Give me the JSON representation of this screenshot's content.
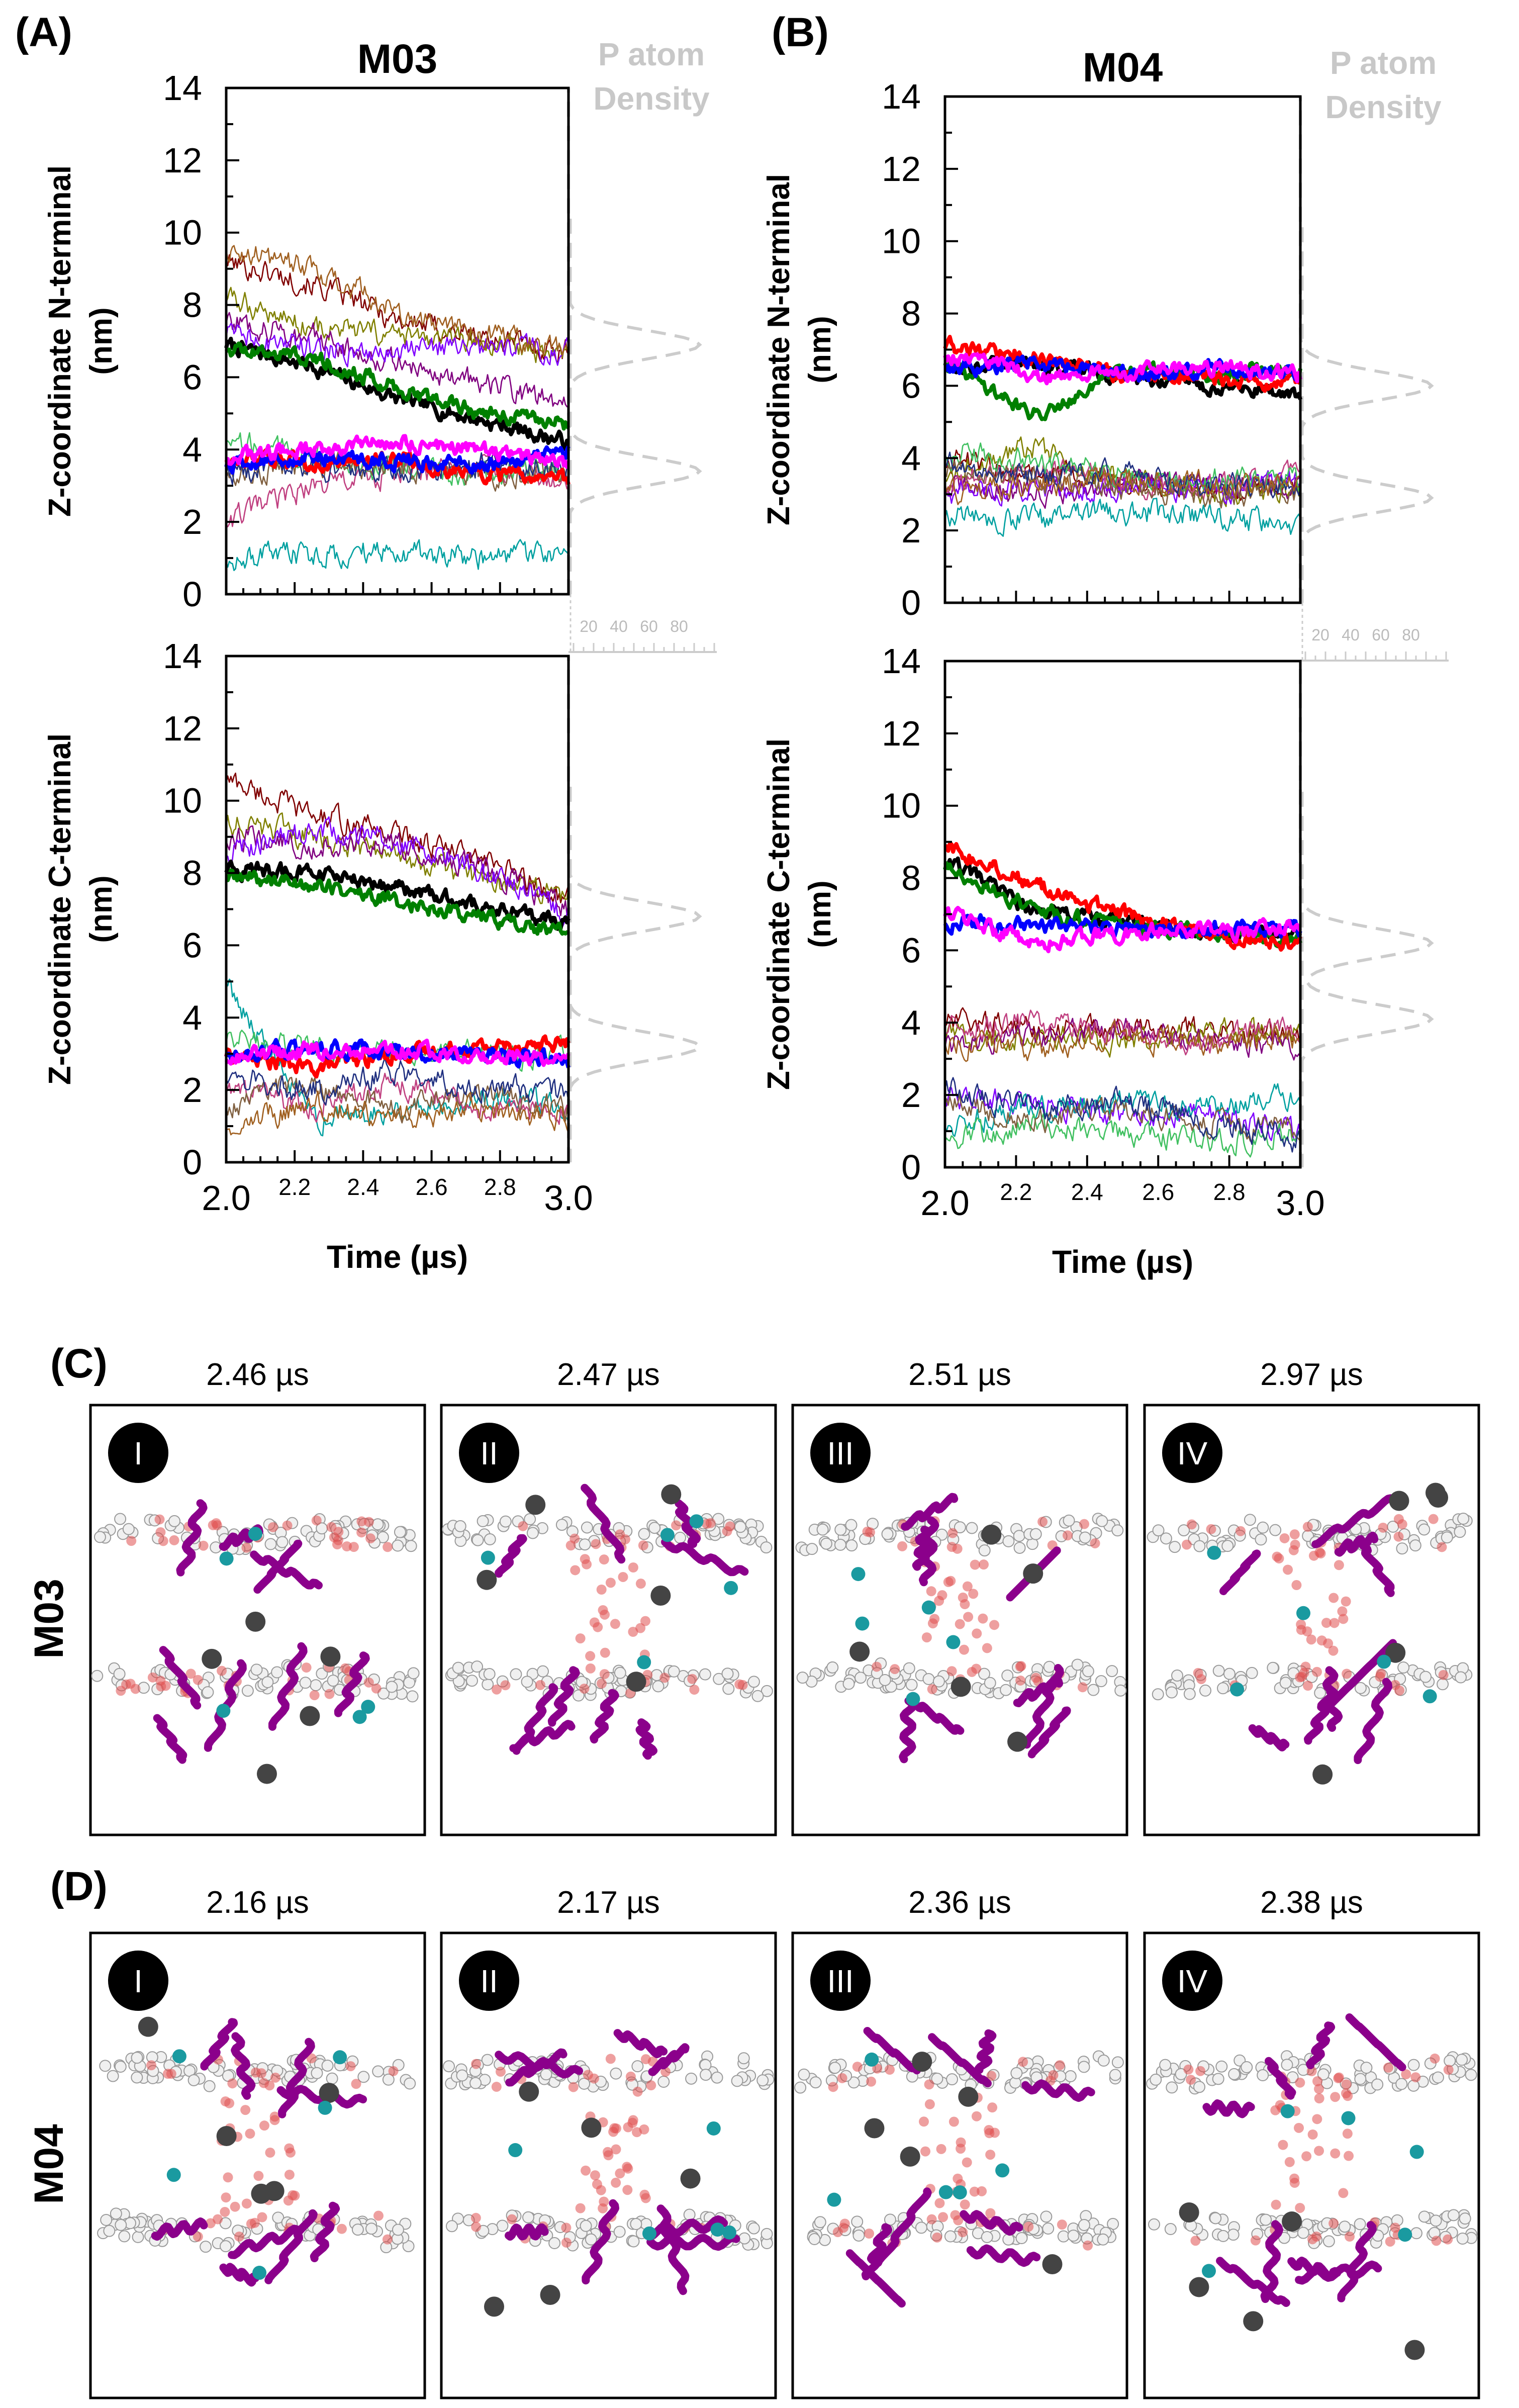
{
  "panel_labels": {
    "A": "(A)",
    "B": "(B)",
    "C": "(C)",
    "D": "(D)"
  },
  "colors": {
    "thick_lines": [
      "#000000",
      "#008000",
      "#ff0000",
      "#0000ff",
      "#ff00ff"
    ],
    "thin_lines": [
      "#800000",
      "#808000",
      "#800080",
      "#8000ff",
      "#00a0a0",
      "#c04080",
      "#40c060",
      "#806040",
      "#203080",
      "#a06020"
    ],
    "density": "#cccccc",
    "protein": "#8b008b",
    "lipid_head": "#f0f0f0",
    "water": "#e05050",
    "marker": "#1a9aa0",
    "dark_bead": "#444444"
  },
  "chart_data": [
    {
      "id": "A_top",
      "type": "line",
      "title": "M03",
      "xlabel": "",
      "ylabel": "Z-coordinate N-terminal (nm)",
      "ylim": [
        0,
        14
      ],
      "xlim": [
        2.0,
        3.0
      ],
      "yticks": [
        0,
        2,
        4,
        6,
        8,
        10,
        12,
        14
      ],
      "xticks": [],
      "density": {
        "label": "P atom Density",
        "xticks": [
          20,
          40,
          60,
          80
        ],
        "peaks_nm": [
          3.4,
          6.9
        ],
        "show_label": true,
        "show_axis": true
      },
      "thick": [
        [
          6.9,
          6.3,
          5.4,
          4.8,
          4.2
        ],
        [
          6.8,
          6.6,
          5.7,
          5.0,
          4.7
        ],
        [
          3.8,
          3.6,
          3.7,
          3.3,
          3.2
        ],
        [
          3.6,
          3.8,
          3.7,
          3.6,
          4.0
        ],
        [
          3.8,
          4.0,
          4.2,
          4.0,
          3.6
        ]
      ],
      "thin": [
        [
          9.2,
          8.6,
          7.6,
          7.1,
          6.7
        ],
        [
          8.2,
          7.4,
          7.1,
          6.9,
          6.6
        ],
        [
          7.6,
          7.1,
          6.4,
          5.8,
          5.3
        ],
        [
          7.2,
          6.8,
          6.8,
          6.8,
          6.7
        ],
        [
          1.0,
          1.1,
          1.2,
          1.0,
          1.1
        ],
        [
          2.0,
          3.0,
          3.3,
          3.5,
          3.2
        ],
        [
          4.3,
          3.8,
          3.5,
          3.3,
          3.4
        ],
        [
          3.3,
          3.6,
          3.5,
          3.3,
          3.3
        ],
        [
          3.4,
          3.5,
          3.4,
          3.6,
          3.5
        ],
        [
          9.6,
          9.0,
          7.8,
          7.2,
          6.8
        ]
      ]
    },
    {
      "id": "A_bot",
      "type": "line",
      "title": "",
      "xlabel": "Time (µs)",
      "ylabel": "Z-coordinate C-terminal (nm)",
      "ylim": [
        0,
        14
      ],
      "xlim": [
        2.0,
        3.0
      ],
      "yticks": [
        0,
        2,
        4,
        6,
        8,
        10,
        12,
        14
      ],
      "xticks": [
        "2.0",
        "2.2",
        "2.4",
        "2.6",
        "2.8",
        "3.0"
      ],
      "density": {
        "label": "",
        "xticks": [],
        "peaks_nm": [
          3.2,
          6.8
        ],
        "show_label": false,
        "show_axis": false
      },
      "thick": [
        [
          8.1,
          8.0,
          7.6,
          7.1,
          6.6
        ],
        [
          7.9,
          7.7,
          7.2,
          6.8,
          6.3
        ],
        [
          3.0,
          2.6,
          3.0,
          3.2,
          3.3
        ],
        [
          3.0,
          3.2,
          3.0,
          3.0,
          2.8
        ],
        [
          2.9,
          3.1,
          3.1,
          2.9,
          2.9
        ]
      ],
      "thin": [
        [
          10.6,
          9.6,
          9.1,
          8.3,
          7.3
        ],
        [
          9.4,
          9.0,
          8.4,
          7.8,
          7.4
        ],
        [
          9.0,
          8.8,
          8.8,
          8.1,
          7.0
        ],
        [
          8.6,
          9.2,
          8.9,
          8.0,
          6.9
        ],
        [
          5.0,
          1.2,
          1.5,
          1.8,
          1.6
        ],
        [
          2.0,
          1.5,
          2.2,
          1.5,
          1.4
        ],
        [
          3.4,
          3.2,
          3.1,
          3.0,
          3.0
        ],
        [
          1.6,
          2.2,
          1.5,
          1.9,
          1.4
        ],
        [
          2.4,
          2.0,
          2.5,
          2.1,
          1.9
        ],
        [
          1.0,
          1.6,
          1.2,
          1.5,
          1.2
        ]
      ]
    },
    {
      "id": "B_top",
      "type": "line",
      "title": "M04",
      "xlabel": "",
      "ylabel": "Z-coordinate N-terminal (nm)",
      "ylim": [
        0,
        14
      ],
      "xlim": [
        2.0,
        3.0
      ],
      "yticks": [
        0,
        2,
        4,
        6,
        8,
        10,
        12,
        14
      ],
      "xticks": [],
      "density": {
        "label": "P atom Density",
        "xticks": [
          20,
          40,
          60,
          80
        ],
        "peaks_nm": [
          2.9,
          6.0
        ],
        "show_label": true,
        "show_axis": true
      },
      "thick": [
        [
          6.6,
          6.6,
          6.3,
          6.0,
          5.7
        ],
        [
          6.7,
          5.2,
          6.4,
          6.3,
          6.5
        ],
        [
          7.1,
          6.8,
          6.3,
          6.2,
          6.1
        ],
        [
          6.5,
          6.6,
          6.3,
          6.5,
          6.3
        ],
        [
          6.9,
          6.3,
          6.4,
          6.5,
          6.3
        ]
      ],
      "thin": [
        [
          4.0,
          3.6,
          3.3,
          3.2,
          3.1
        ],
        [
          3.5,
          4.3,
          3.4,
          3.1,
          3.0
        ],
        [
          3.2,
          3.0,
          3.3,
          3.3,
          3.3
        ],
        [
          3.0,
          3.2,
          3.2,
          3.1,
          3.4
        ],
        [
          2.4,
          2.3,
          2.5,
          2.4,
          2.1
        ],
        [
          3.4,
          3.7,
          3.3,
          3.2,
          3.6
        ],
        [
          4.2,
          3.9,
          3.5,
          3.4,
          3.4
        ],
        [
          3.6,
          3.4,
          3.2,
          3.0,
          3.1
        ],
        [
          3.8,
          3.5,
          3.6,
          3.3,
          3.2
        ],
        [
          3.0,
          3.3,
          3.4,
          3.3,
          3.2
        ]
      ]
    },
    {
      "id": "B_bot",
      "type": "line",
      "title": "",
      "xlabel": "Time (µs)",
      "ylabel": "Z-coordinate C-terminal (nm)",
      "ylim": [
        0,
        14
      ],
      "xlim": [
        2.0,
        3.0
      ],
      "yticks": [
        0,
        2,
        4,
        6,
        8,
        10,
        12,
        14
      ],
      "xticks": [
        "2.0",
        "2.2",
        "2.4",
        "2.6",
        "2.8",
        "3.0"
      ],
      "density": {
        "label": "",
        "xticks": [],
        "peaks_nm": [
          4.1,
          6.2
        ],
        "show_label": false,
        "show_axis": false
      },
      "thick": [
        [
          8.5,
          7.1,
          6.8,
          6.4,
          6.6
        ],
        [
          8.3,
          7.1,
          6.7,
          6.5,
          6.3
        ],
        [
          8.9,
          7.8,
          7.0,
          6.4,
          6.2
        ],
        [
          6.8,
          6.7,
          6.6,
          6.6,
          6.6
        ],
        [
          7.0,
          6.2,
          6.5,
          6.5,
          6.6
        ]
      ],
      "thin": [
        [
          4.0,
          3.9,
          3.8,
          3.8,
          3.6
        ],
        [
          3.6,
          3.6,
          3.5,
          3.7,
          3.8
        ],
        [
          3.4,
          3.6,
          3.8,
          3.5,
          3.4
        ],
        [
          2.0,
          1.8,
          1.4,
          1.5,
          0.9
        ],
        [
          1.2,
          1.6,
          1.8,
          1.6,
          2.0
        ],
        [
          3.8,
          4.0,
          3.7,
          3.5,
          3.9
        ],
        [
          0.8,
          1.2,
          1.0,
          0.7,
          0.9
        ],
        [
          1.8,
          1.3,
          1.6,
          1.2,
          1.0
        ],
        [
          2.2,
          1.6,
          1.8,
          1.3,
          0.7
        ],
        [
          3.5,
          3.3,
          3.6,
          3.4,
          3.6
        ]
      ]
    }
  ],
  "snapshots": {
    "C": {
      "row_label": "M03",
      "panels": [
        {
          "time": "2.46 µs",
          "roman": "I"
        },
        {
          "time": "2.47 µs",
          "roman": "II"
        },
        {
          "time": "2.51 µs",
          "roman": "III"
        },
        {
          "time": "2.97 µs",
          "roman": "IV"
        }
      ]
    },
    "D": {
      "row_label": "M04",
      "panels": [
        {
          "time": "2.16 µs",
          "roman": "I"
        },
        {
          "time": "2.17 µs",
          "roman": "II"
        },
        {
          "time": "2.36 µs",
          "roman": "III"
        },
        {
          "time": "2.38 µs",
          "roman": "IV"
        }
      ]
    }
  }
}
